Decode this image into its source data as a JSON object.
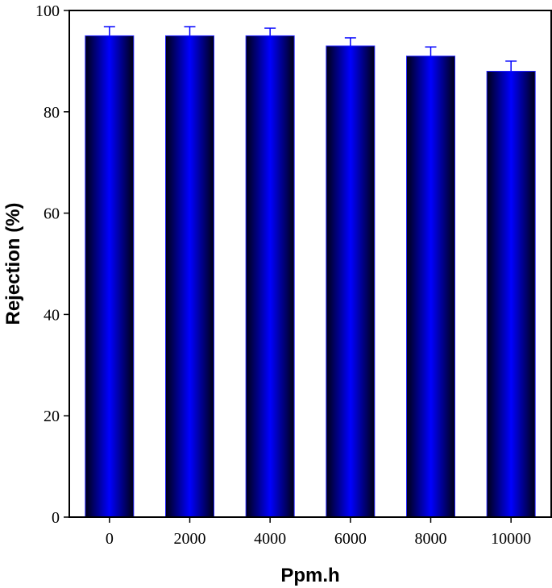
{
  "chart_data": {
    "type": "bar",
    "title": "",
    "xlabel": "Ppm.h",
    "ylabel": "Rejection (%)",
    "categories": [
      "0",
      "2000",
      "4000",
      "6000",
      "8000",
      "10000"
    ],
    "values": [
      95,
      95,
      95,
      93,
      91,
      88
    ],
    "error_bars": [
      1.8,
      1.8,
      1.5,
      1.6,
      1.8,
      2.0
    ],
    "ylim": [
      0,
      100
    ],
    "yticks": [
      "0",
      "20",
      "40",
      "60",
      "80",
      "100"
    ],
    "grid": false,
    "legend": "none",
    "colors": {
      "bar_edge_dark": "#000014",
      "bar_center": "#0000ff",
      "bar_outline": "#2222ff",
      "error_bar": "#0000ff",
      "axis": "#000000"
    }
  }
}
